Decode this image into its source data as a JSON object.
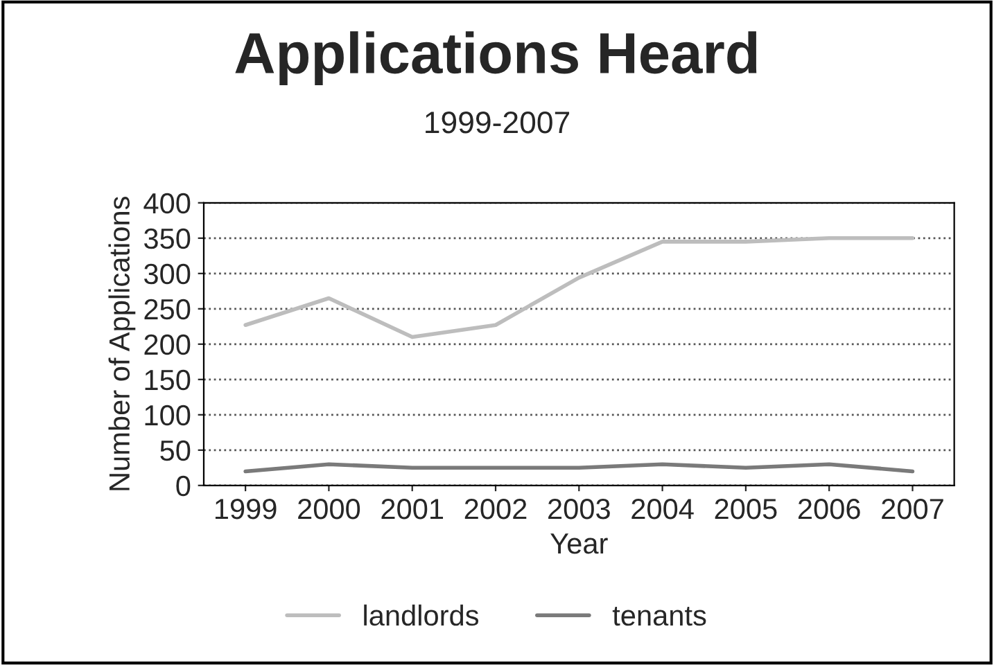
{
  "chart_data": {
    "type": "line",
    "title": "Applications Heard",
    "subtitle": "1999-2007",
    "xlabel": "Year",
    "ylabel": "Number of Applications",
    "categories": [
      "1999",
      "2000",
      "2001",
      "2002",
      "2003",
      "2004",
      "2005",
      "2006",
      "2007"
    ],
    "series": [
      {
        "name": "landlords",
        "color": "#bdbdbd",
        "values": [
          227,
          265,
          210,
          227,
          294,
          345,
          345,
          350,
          350
        ]
      },
      {
        "name": "tenants",
        "color": "#7a7a7a",
        "values": [
          20,
          30,
          25,
          25,
          25,
          30,
          25,
          30,
          20
        ]
      }
    ],
    "ylim": [
      0,
      400
    ],
    "yticks": [
      0,
      50,
      100,
      150,
      200,
      250,
      300,
      350,
      400
    ],
    "grid": "y",
    "legend": "bottom",
    "line_style": "solid"
  }
}
